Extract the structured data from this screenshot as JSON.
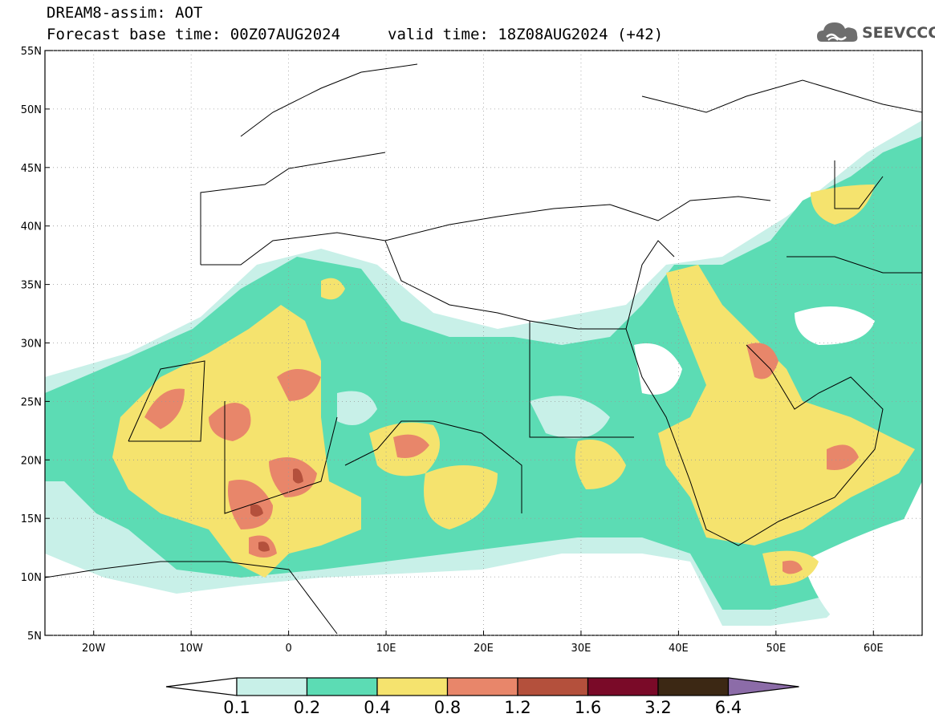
{
  "header": {
    "title": "DREAM8-assim: AOT",
    "base_time": "Forecast base time: 00Z07AUG2024",
    "valid_time": "valid time: 18Z08AUG2024 (+42)"
  },
  "logo": {
    "text": "SEEVCCC",
    "icon": "cloud-icon"
  },
  "map": {
    "lon_labels": [
      "20W",
      "10W",
      "0",
      "10E",
      "20E",
      "30E",
      "40E",
      "50E",
      "60E"
    ],
    "lat_labels": [
      "55N",
      "50N",
      "45N",
      "40N",
      "35N",
      "30N",
      "25N",
      "20N",
      "15N",
      "10N",
      "5N"
    ]
  },
  "colorbar": {
    "labels": [
      "0.1",
      "0.2",
      "0.4",
      "0.8",
      "1.2",
      "1.6",
      "3.2",
      "6.4"
    ],
    "colors": [
      "#ffffff",
      "#c8f0e8",
      "#5cdcb4",
      "#f5e36e",
      "#e8866a",
      "#b4503c",
      "#7a0a28",
      "#3c2814",
      "#8c6ca8"
    ]
  },
  "field_colors": {
    "c1": "#c8f0e8",
    "c2": "#5cdcb4",
    "c3": "#f5e36e",
    "c4": "#e8866a",
    "c5": "#b4503c"
  }
}
